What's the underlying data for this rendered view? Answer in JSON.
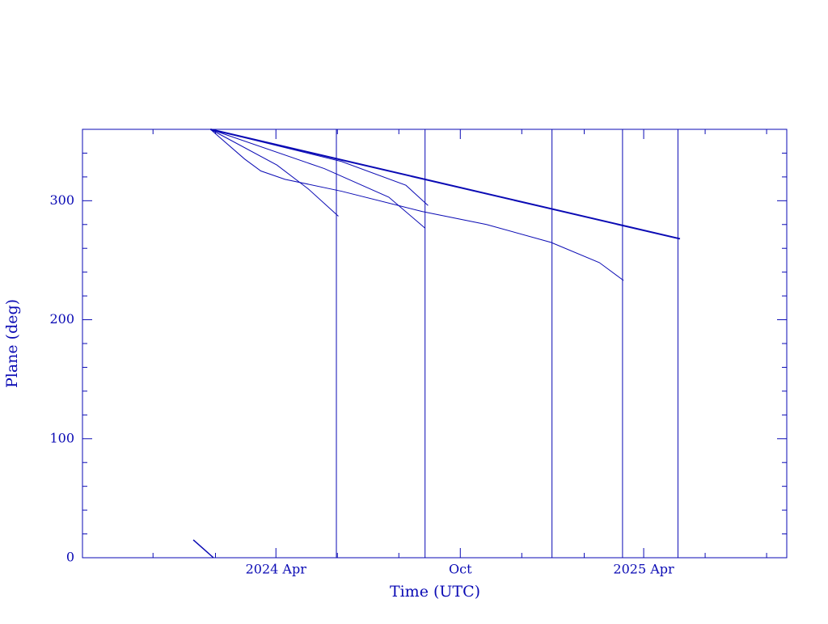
{
  "chart_data": {
    "type": "line",
    "xlabel": "Time (UTC)",
    "ylabel": "Plane (deg)",
    "color": "#0a0ab4",
    "xlim": [
      "2023-09-22",
      "2025-08-21"
    ],
    "xticks": [
      {
        "value": "2024-04-01",
        "label": "2024 Apr"
      },
      {
        "value": "2024-10-01",
        "label": "Oct"
      },
      {
        "value": "2025-04-01",
        "label": "2025 Apr"
      }
    ],
    "xminorticks": [
      "2023-12-01",
      "2024-02-01",
      "2024-06-01",
      "2024-08-01",
      "2024-12-01",
      "2025-02-01",
      "2025-06-01",
      "2025-08-01"
    ],
    "ylim": [
      0,
      360
    ],
    "yticks": [
      0,
      100,
      200,
      300
    ],
    "yminorticks": [
      20,
      40,
      60,
      80,
      120,
      140,
      160,
      180,
      220,
      240,
      260,
      280,
      320,
      340
    ],
    "vlines": [
      "2024-05-31",
      "2024-08-27",
      "2024-12-31",
      "2025-03-11",
      "2025-05-05"
    ],
    "series": [
      {
        "color": "#0a0ab4",
        "width": 2,
        "x": [
          "2024-01-27",
          "2025-05-07"
        ],
        "values": [
          360,
          268
        ]
      },
      {
        "color": "#0a0ab4",
        "width": 1,
        "x": [
          "2024-01-27",
          "2024-03-01",
          "2024-03-17",
          "2024-04-10",
          "2024-06-05",
          "2024-08-24",
          "2024-10-27",
          "2024-12-30",
          "2025-02-16",
          "2025-03-12"
        ],
        "values": [
          360,
          335,
          325,
          318,
          308,
          291,
          280,
          265,
          248,
          233
        ]
      },
      {
        "color": "#0a0ab4",
        "width": 1,
        "x": [
          "2024-01-27",
          "2024-04-02",
          "2024-05-03",
          "2024-06-02"
        ],
        "values": [
          360,
          330,
          310,
          287
        ]
      },
      {
        "color": "#0a0ab4",
        "width": 1,
        "x": [
          "2024-01-27",
          "2024-05-19",
          "2024-07-22",
          "2024-08-27"
        ],
        "values": [
          360,
          327,
          303,
          277
        ]
      },
      {
        "color": "#0a0ab4",
        "width": 1,
        "x": [
          "2024-01-27",
          "2024-06-05",
          "2024-08-08",
          "2024-08-30"
        ],
        "values": [
          360,
          333,
          313,
          296
        ]
      },
      {
        "color": "#0a0ab4",
        "width": 1.5,
        "x": [
          "2024-01-10",
          "2024-01-30"
        ],
        "values": [
          15,
          0
        ]
      }
    ]
  }
}
